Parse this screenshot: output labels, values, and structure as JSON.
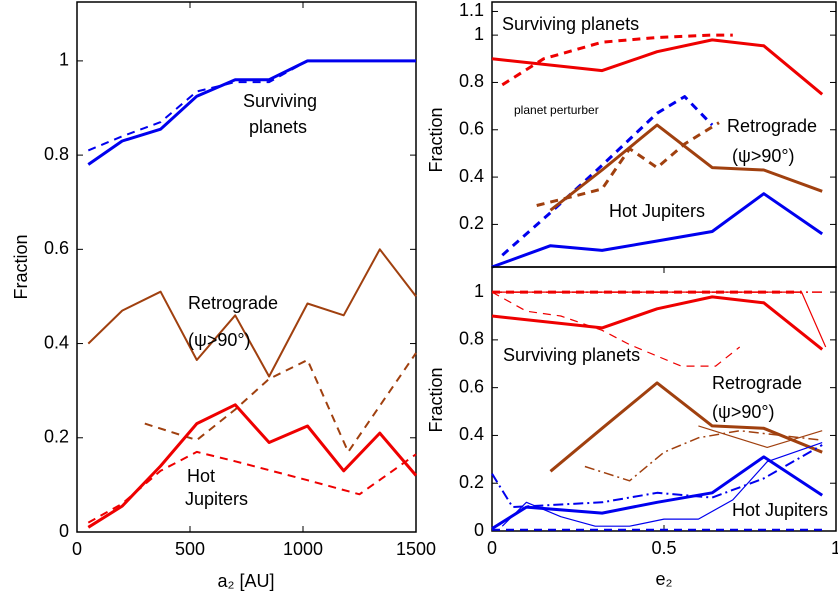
{
  "chart_data": [
    {
      "type": "line",
      "ylabel": "Fraction",
      "xlabel": "a₂ [AU]",
      "xlim": [
        0,
        1500
      ],
      "ylim": [
        0,
        1.125
      ],
      "xticks": [
        0,
        500,
        1000,
        1500
      ],
      "yticks": [
        0,
        0.2,
        0.4,
        0.6,
        0.8,
        1
      ],
      "annotations": [
        "Surviving",
        "planets",
        "Retrograde",
        "(ψ>90°)",
        "Hot",
        "Jupiters"
      ],
      "series": [
        {
          "color": "#0000ee",
          "style": "solid",
          "width": 3,
          "x": [
            50,
            200,
            370,
            530,
            700,
            850,
            1020,
            1500
          ],
          "values": [
            0.78,
            0.83,
            0.855,
            0.925,
            0.96,
            0.96,
            1,
            1
          ]
        },
        {
          "color": "#0000ee",
          "style": "dashed",
          "width": 2,
          "x": [
            50,
            200,
            370,
            530,
            700,
            850,
            1020,
            1500
          ],
          "values": [
            0.81,
            0.84,
            0.87,
            0.935,
            0.955,
            0.955,
            1,
            1
          ]
        },
        {
          "color": "#a0400f",
          "style": "solid",
          "width": 2,
          "x": [
            50,
            200,
            370,
            530,
            700,
            850,
            1020,
            1180,
            1340,
            1500
          ],
          "values": [
            0.4,
            0.47,
            0.51,
            0.365,
            0.46,
            0.33,
            0.485,
            0.46,
            0.6,
            0.5
          ]
        },
        {
          "color": "#a0400f",
          "style": "dashed",
          "width": 2,
          "x": [
            300,
            530,
            700,
            850,
            1020,
            1200,
            1500
          ],
          "values": [
            0.23,
            0.195,
            0.26,
            0.325,
            0.365,
            0.17,
            0.38
          ]
        },
        {
          "color": "#ee0000",
          "style": "solid",
          "width": 3,
          "x": [
            50,
            200,
            370,
            530,
            700,
            850,
            1020,
            1180,
            1340,
            1500
          ],
          "values": [
            0.01,
            0.055,
            0.14,
            0.23,
            0.27,
            0.19,
            0.225,
            0.13,
            0.21,
            0.12
          ]
        },
        {
          "color": "#ee0000",
          "style": "dashed",
          "width": 2,
          "x": [
            50,
            200,
            370,
            530,
            700,
            1020,
            1250,
            1500
          ],
          "values": [
            0.02,
            0.06,
            0.13,
            0.17,
            0.15,
            0.11,
            0.08,
            0.165
          ]
        }
      ]
    },
    {
      "type": "line",
      "ylabel": "Fraction",
      "xlim": [
        0,
        1
      ],
      "ylim": [
        0.02,
        1.14
      ],
      "yticks": [
        0.2,
        0.4,
        0.6,
        0.8,
        1,
        1.1
      ],
      "annotations": [
        "Surviving planets",
        "planet perturber",
        "Retrograde",
        "(ψ>90°)",
        "Hot Jupiters"
      ],
      "series": [
        {
          "color": "#ee0000",
          "style": "solid",
          "width": 3,
          "x": [
            0,
            0.32,
            0.48,
            0.64,
            0.79,
            0.96
          ],
          "values": [
            0.9,
            0.85,
            0.93,
            0.98,
            0.955,
            0.75
          ]
        },
        {
          "color": "#ee0000",
          "style": "dashed",
          "width": 3,
          "x": [
            0.03,
            0.15,
            0.32,
            0.48,
            0.64,
            0.7
          ],
          "values": [
            0.79,
            0.9,
            0.97,
            0.99,
            1,
            1
          ]
        },
        {
          "color": "#0000ee",
          "style": "dashed",
          "width": 3,
          "x": [
            0.03,
            0.17,
            0.32,
            0.48,
            0.56,
            0.64
          ],
          "values": [
            0.07,
            0.25,
            0.45,
            0.67,
            0.74,
            0.62
          ]
        },
        {
          "color": "#0000ee",
          "style": "solid",
          "width": 3,
          "x": [
            0,
            0.17,
            0.32,
            0.48,
            0.64,
            0.79,
            0.96
          ],
          "values": [
            0.02,
            0.11,
            0.09,
            0.13,
            0.17,
            0.33,
            0.16
          ]
        },
        {
          "color": "#a0400f",
          "style": "solid",
          "width": 3,
          "x": [
            0.17,
            0.32,
            0.48,
            0.64,
            0.79,
            0.96
          ],
          "values": [
            0.26,
            0.43,
            0.62,
            0.44,
            0.43,
            0.34
          ]
        },
        {
          "color": "#a0400f",
          "style": "dashed",
          "width": 3,
          "x": [
            0.13,
            0.24,
            0.32,
            0.4,
            0.48,
            0.56,
            0.66
          ],
          "values": [
            0.28,
            0.32,
            0.35,
            0.52,
            0.44,
            0.54,
            0.63
          ]
        }
      ]
    },
    {
      "type": "line",
      "ylabel": "Fraction",
      "xlabel": "e₂",
      "xlim": [
        0,
        1
      ],
      "ylim": [
        0,
        1.105
      ],
      "xticks": [
        0,
        0.5,
        1
      ],
      "yticks": [
        0,
        0.2,
        0.4,
        0.6,
        0.8,
        1
      ],
      "annotations": [
        "Surviving planets",
        "Retrograde",
        "(ψ>90°)",
        "Hot Jupiters"
      ],
      "series": [
        {
          "color": "#ee0000",
          "style": "solid",
          "width": 3,
          "x": [
            0,
            0.32,
            0.48,
            0.64,
            0.79,
            0.96
          ],
          "values": [
            0.9,
            0.85,
            0.93,
            0.98,
            0.955,
            0.76
          ]
        },
        {
          "color": "#ee0000",
          "style": "dashed",
          "width": 3,
          "x": [
            0,
            0.9
          ],
          "values": [
            1,
            1
          ]
        },
        {
          "color": "#ee0000",
          "style": "solid",
          "width": 1.2,
          "x": [
            0,
            0.9,
            0.97
          ],
          "values": [
            1,
            1,
            0.77
          ]
        },
        {
          "color": "#ee0000",
          "style": "dashed",
          "width": 1.2,
          "x": [
            0,
            0.1,
            0.2,
            0.32,
            0.4,
            0.55,
            0.65,
            0.72
          ],
          "values": [
            1,
            0.92,
            0.9,
            0.84,
            0.78,
            0.69,
            0.69,
            0.77
          ]
        },
        {
          "color": "#ee0000",
          "style": "dashdot",
          "width": 1.5,
          "x": [
            0,
            0.96
          ],
          "values": [
            1,
            1
          ]
        },
        {
          "color": "#a0400f",
          "style": "solid",
          "width": 3,
          "x": [
            0.17,
            0.32,
            0.48,
            0.64,
            0.79,
            0.96
          ],
          "values": [
            0.25,
            0.43,
            0.62,
            0.44,
            0.43,
            0.33
          ]
        },
        {
          "color": "#a0400f",
          "style": "dashdot",
          "width": 1.5,
          "x": [
            0.27,
            0.4,
            0.5,
            0.6,
            0.72,
            0.96
          ],
          "values": [
            0.27,
            0.21,
            0.33,
            0.39,
            0.42,
            0.38
          ]
        },
        {
          "color": "#a0400f",
          "style": "solid",
          "width": 1.2,
          "x": [
            0.6,
            0.8,
            0.96
          ],
          "values": [
            0.44,
            0.35,
            0.42
          ]
        },
        {
          "color": "#0000ee",
          "style": "solid",
          "width": 3,
          "x": [
            0,
            0.1,
            0.32,
            0.48,
            0.64,
            0.79,
            0.96
          ],
          "values": [
            0.01,
            0.1,
            0.075,
            0.12,
            0.16,
            0.31,
            0.15
          ]
        },
        {
          "color": "#0000ee",
          "style": "dashdot",
          "width": 2,
          "x": [
            0,
            0.06,
            0.32,
            0.48,
            0.64,
            0.79,
            0.96
          ],
          "values": [
            0.24,
            0.1,
            0.12,
            0.16,
            0.14,
            0.22,
            0.36
          ]
        },
        {
          "color": "#0000ee",
          "style": "solid",
          "width": 1.2,
          "x": [
            0.03,
            0.1,
            0.2,
            0.3,
            0.4,
            0.5,
            0.6,
            0.7,
            0.8,
            0.96
          ],
          "values": [
            0.02,
            0.12,
            0.06,
            0.02,
            0.02,
            0.05,
            0.05,
            0.13,
            0.29,
            0.37
          ]
        },
        {
          "color": "#0000ee",
          "style": "dashed",
          "width": 2,
          "x": [
            0,
            0.5,
            0.96
          ],
          "values": [
            0.005,
            0.005,
            0.005
          ]
        }
      ]
    }
  ]
}
